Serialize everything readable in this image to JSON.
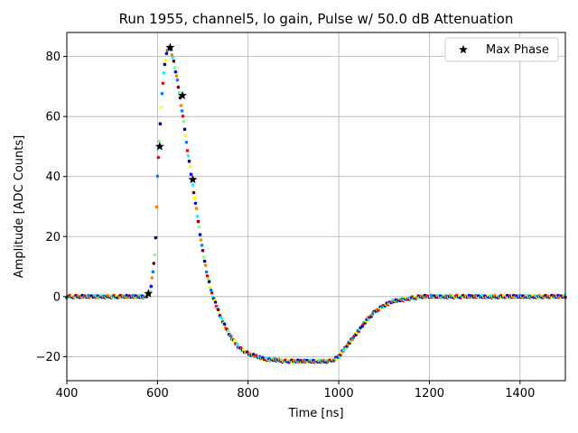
{
  "chart_data": {
    "type": "scatter",
    "title": "Run 1955, channel5, lo gain, Pulse w/ 50.0 dB Attenuation",
    "xlabel": "Time [ns]",
    "ylabel": "Amplitude [ADC Counts]",
    "xlim": [
      400,
      1500
    ],
    "ylim": [
      -28,
      88
    ],
    "xticks": [
      400,
      600,
      800,
      1000,
      1200,
      1400
    ],
    "yticks": [
      -20,
      0,
      20,
      40,
      60,
      80
    ],
    "grid": true,
    "legend": {
      "position": "top-right",
      "entries": [
        "Max Phase"
      ]
    },
    "waveform": {
      "x": [
        400,
        450,
        500,
        550,
        575,
        585,
        595,
        600,
        605,
        610,
        615,
        620,
        625,
        630,
        635,
        640,
        645,
        650,
        655,
        660,
        665,
        670,
        680,
        690,
        700,
        710,
        720,
        740,
        760,
        780,
        800,
        820,
        840,
        860,
        880,
        900,
        920,
        940,
        960,
        980,
        990,
        1000,
        1010,
        1020,
        1040,
        1060,
        1080,
        1100,
        1120,
        1140,
        1160,
        1180,
        1200,
        1250,
        1300,
        1350,
        1400,
        1450,
        1500
      ],
      "y": [
        0,
        0,
        0,
        0,
        0,
        2,
        15,
        40,
        55,
        68,
        76,
        81,
        83,
        82,
        79,
        75,
        71,
        66,
        61,
        56,
        50,
        45,
        35,
        25,
        15,
        7,
        1,
        -7,
        -13,
        -17,
        -19,
        -20,
        -21,
        -21,
        -21.5,
        -21.5,
        -21.5,
        -21.5,
        -21.5,
        -21.5,
        -21,
        -20,
        -18,
        -16,
        -12,
        -8,
        -5,
        -3,
        -1.5,
        -1,
        -0.5,
        0,
        0,
        0,
        0,
        0,
        0,
        0,
        0
      ]
    },
    "series": [
      {
        "name": "Max Phase",
        "marker": "star",
        "color": "#000000",
        "x": [
          580,
          605,
          628,
          655,
          678
        ],
        "y": [
          1,
          50,
          83,
          67,
          39
        ]
      }
    ],
    "colormap": [
      "#00007f",
      "#0000ff",
      "#007fff",
      "#00ffff",
      "#7fff7f",
      "#ffff00",
      "#ff7f00",
      "#ff0000",
      "#7f0000"
    ]
  }
}
